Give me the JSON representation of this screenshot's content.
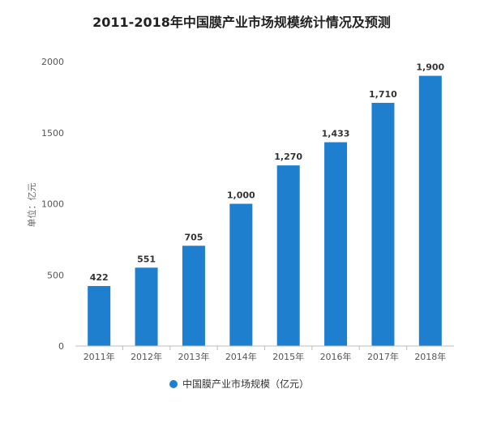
{
  "chart_data": {
    "type": "bar",
    "title": "2011-2018年中国膜产业市场规模统计情况及预测",
    "xlabel": "",
    "ylabel": "单位：亿元",
    "categories": [
      "2011年",
      "2012年",
      "2013年",
      "2014年",
      "2015年",
      "2016年",
      "2017年",
      "2018年"
    ],
    "series": [
      {
        "name": "中国膜产业市场规模（亿元）",
        "values": [
          422,
          551,
          705,
          1000,
          1270,
          1433,
          1710,
          1900
        ],
        "value_labels": [
          "422",
          "551",
          "705",
          "1,000",
          "1,270",
          "1,433",
          "1,710",
          "1,900"
        ],
        "color": "#1f7fcf"
      }
    ],
    "ylim": [
      0,
      2000
    ],
    "yticks": [
      0,
      500,
      1000,
      1500,
      2000
    ],
    "ytick_labels": [
      "0",
      "500",
      "1000",
      "1500",
      "2000"
    ],
    "grid": false,
    "legend_position": "bottom"
  }
}
